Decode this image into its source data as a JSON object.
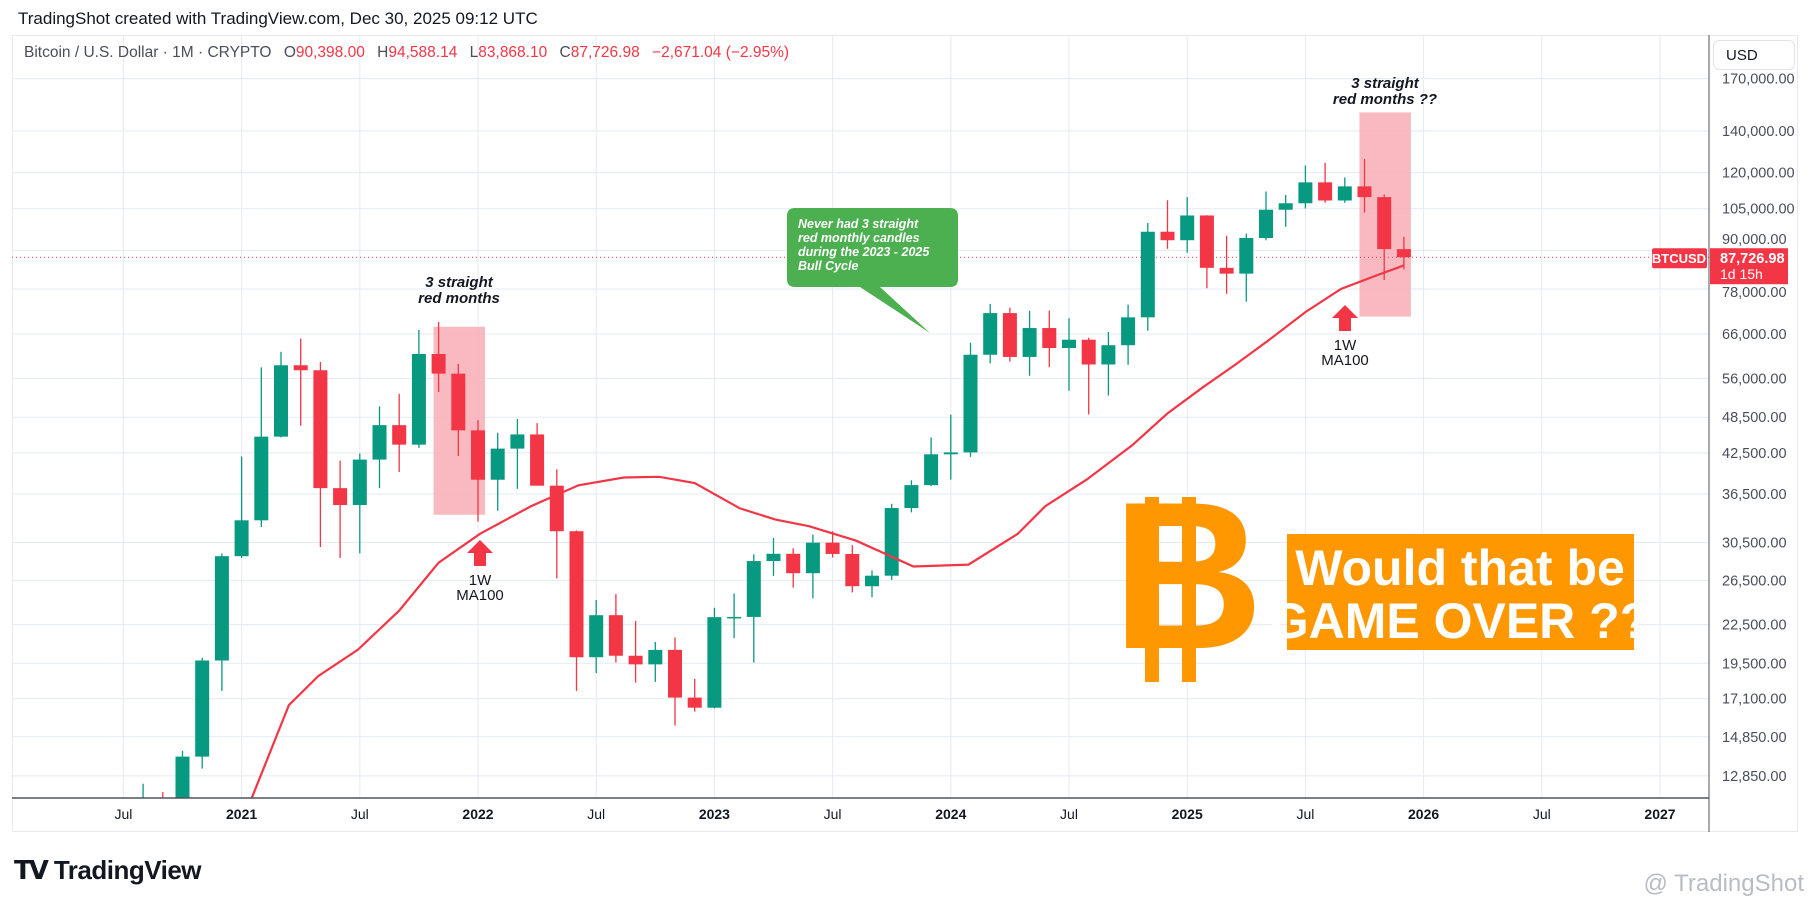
{
  "header": {
    "title": "TradingShot created with TradingView.com, Dec 30, 2025 09:12 UTC"
  },
  "legend": {
    "symbol": "Bitcoin / U.S. Dollar · 1M · CRYPTO",
    "o_label": "O",
    "o": "90,398.00",
    "h_label": "H",
    "h": "94,588.14",
    "l_label": "L",
    "l": "83,868.10",
    "c_label": "C",
    "c": "87,726.98",
    "change": "−2,671.04 (−2.95%)"
  },
  "currency_button": "USD",
  "price_tag": {
    "symbol": "BTCUSD",
    "price": "87,726.98",
    "countdown": "1d 15h",
    "value": 87726.98
  },
  "colors": {
    "up": "#089981",
    "down": "#f23645",
    "ma": "#f23645",
    "accent": "#ff9800",
    "bubble": "#4caf50",
    "highlight": "#f7b2b9"
  },
  "annotations": {
    "box1_line1": "3 straight",
    "box1_line2": "red months",
    "box2_line1": "3 straight",
    "box2_line2": "red months ??",
    "arrow1_line1": "1W",
    "arrow1_line2": "MA100",
    "arrow2_line1": "1W",
    "arrow2_line2": "MA100",
    "bubble_lines": [
      "Never had 3 straight",
      "red monthly candles",
      "during the 2023 - 2025",
      "Bull Cycle"
    ],
    "banner_line1": "Would that be",
    "banner_line2": "GAME OVER ??",
    "logo_letter": "B"
  },
  "footer": {
    "brand": "TradingView",
    "watermark": "@ TradingShot"
  },
  "chart_data": {
    "type": "candlestick",
    "title": "Bitcoin / U.S. Dollar · 1M · CRYPTO",
    "yscale": "log",
    "ylim": [
      11500,
      185000
    ],
    "first_month": "2020-07",
    "yticks": [
      170000,
      140000,
      120000,
      105000,
      90000,
      78000,
      66000,
      56000,
      48500,
      42500,
      36500,
      30500,
      26500,
      22500,
      19500,
      17100,
      14850,
      12850
    ],
    "ytick_labels": [
      "170,000.00",
      "140,000.00",
      "120,000.00",
      "105,000.00",
      "90,000.00",
      "78,000.00",
      "66,000.00",
      "56,000.00",
      "48,500.00",
      "42,500.00",
      "36,500.00",
      "30,500.00",
      "26,500.00",
      "22,500.00",
      "19,500.00",
      "17,100.00",
      "14,850.00",
      "12,850.00"
    ],
    "xticks": [
      {
        "label": "Jul",
        "month": -6,
        "major": false
      },
      {
        "label": "2021",
        "month": 0,
        "major": true
      },
      {
        "label": "Jul",
        "month": 6,
        "major": false
      },
      {
        "label": "2022",
        "month": 12,
        "major": true
      },
      {
        "label": "Jul",
        "month": 18,
        "major": false
      },
      {
        "label": "2023",
        "month": 24,
        "major": true
      },
      {
        "label": "Jul",
        "month": 30,
        "major": false
      },
      {
        "label": "2024",
        "month": 36,
        "major": true
      },
      {
        "label": "Jul",
        "month": 42,
        "major": false
      },
      {
        "label": "2025",
        "month": 48,
        "major": true
      },
      {
        "label": "Jul",
        "month": 54,
        "major": false
      },
      {
        "label": "2026",
        "month": 60,
        "major": true
      },
      {
        "label": "Jul",
        "month": 66,
        "major": false
      },
      {
        "label": "2027",
        "month": 72,
        "major": true
      }
    ],
    "ohlc": [
      [
        9140,
        11450,
        8990,
        11350
      ],
      [
        11350,
        12480,
        11100,
        11650
      ],
      [
        11650,
        12100,
        9900,
        10780
      ],
      [
        10780,
        14100,
        10550,
        13800
      ],
      [
        13800,
        19900,
        13200,
        19700
      ],
      [
        19700,
        29300,
        17600,
        28990
      ],
      [
        28990,
        41950,
        28800,
        33110
      ],
      [
        33110,
        58350,
        32300,
        45140
      ],
      [
        45140,
        61800,
        45000,
        58800
      ],
      [
        58800,
        64900,
        47000,
        57720
      ],
      [
        57720,
        59500,
        30000,
        37300
      ],
      [
        37300,
        41300,
        28800,
        35040
      ],
      [
        35040,
        42400,
        29300,
        41460
      ],
      [
        41460,
        50500,
        37300,
        47100
      ],
      [
        47100,
        52900,
        39600,
        43820
      ],
      [
        43820,
        67000,
        43300,
        61300
      ],
      [
        61300,
        69000,
        53250,
        57000
      ],
      [
        57000,
        59100,
        42000,
        46200
      ],
      [
        46200,
        47990,
        32950,
        38480
      ],
      [
        38480,
        45800,
        34300,
        43180
      ],
      [
        43180,
        48200,
        37200,
        45510
      ],
      [
        45510,
        47450,
        37700,
        37640
      ],
      [
        37640,
        40000,
        26700,
        31800
      ],
      [
        31800,
        31900,
        17600,
        19940
      ],
      [
        19940,
        24650,
        18800,
        23300
      ],
      [
        23300,
        25200,
        19550,
        20050
      ],
      [
        20050,
        22800,
        18150,
        19420
      ],
      [
        19420,
        21100,
        18200,
        20490
      ],
      [
        20490,
        21450,
        15480,
        17170
      ],
      [
        17170,
        18400,
        16300,
        16540
      ],
      [
        16540,
        23950,
        16500,
        23130
      ],
      [
        23130,
        25250,
        21400,
        23150
      ],
      [
        23150,
        29200,
        19550,
        28470
      ],
      [
        28470,
        31000,
        26950,
        29250
      ],
      [
        29250,
        29850,
        25800,
        27220
      ],
      [
        27220,
        31400,
        24800,
        30480
      ],
      [
        30480,
        31800,
        28850,
        29230
      ],
      [
        29230,
        30200,
        25350,
        25940
      ],
      [
        25940,
        27500,
        24900,
        26970
      ],
      [
        26970,
        35200,
        26550,
        34650
      ],
      [
        34650,
        38400,
        34100,
        37720
      ],
      [
        37720,
        45000,
        37600,
        42280
      ],
      [
        42280,
        48970,
        38500,
        42580
      ],
      [
        42580,
        63900,
        41880,
        61130
      ],
      [
        61130,
        73800,
        59200,
        71330
      ],
      [
        71330,
        72800,
        59600,
        60640
      ],
      [
        60640,
        71950,
        56550,
        67490
      ],
      [
        67490,
        72000,
        58400,
        62680
      ],
      [
        62680,
        70000,
        53500,
        64630
      ],
      [
        64630,
        65100,
        49000,
        58970
      ],
      [
        58970,
        66500,
        52550,
        63330
      ],
      [
        63330,
        73600,
        58900,
        70220
      ],
      [
        70220,
        99600,
        66800,
        96410
      ],
      [
        96410,
        108350,
        90500,
        93430
      ],
      [
        93430,
        109600,
        89200,
        102400
      ],
      [
        102400,
        102500,
        78200,
        84350
      ],
      [
        84350,
        95000,
        76600,
        82550
      ],
      [
        82550,
        95750,
        74400,
        94200
      ],
      [
        94200,
        111900,
        93400,
        104600
      ],
      [
        104600,
        110500,
        98200,
        107130
      ],
      [
        107130,
        123200,
        105100,
        115760
      ],
      [
        115760,
        124450,
        107300,
        108240
      ],
      [
        108240,
        117900,
        107300,
        114050
      ],
      [
        114050,
        126200,
        103500,
        109600
      ],
      [
        109600,
        110700,
        80600,
        90398
      ],
      [
        90398,
        94588.14,
        83868.1,
        87726.98
      ]
    ],
    "ma100_weekly": [
      [
        0.5,
        11800
      ],
      [
        2.4,
        16700
      ],
      [
        3.9,
        18600
      ],
      [
        5.9,
        20500
      ],
      [
        8.0,
        23700
      ],
      [
        10.0,
        28300
      ],
      [
        12.1,
        31500
      ],
      [
        14.7,
        34900
      ],
      [
        17.1,
        37700
      ],
      [
        19.4,
        38800
      ],
      [
        21.2,
        38900
      ],
      [
        23.0,
        38000
      ],
      [
        25.3,
        34600
      ],
      [
        27.1,
        33200
      ],
      [
        28.8,
        32400
      ],
      [
        31.2,
        30700
      ],
      [
        34.1,
        27900
      ],
      [
        36.9,
        28100
      ],
      [
        39.4,
        31500
      ],
      [
        40.8,
        34900
      ],
      [
        42.9,
        38500
      ],
      [
        45.2,
        43700
      ],
      [
        47.0,
        49200
      ],
      [
        48.8,
        54200
      ],
      [
        50.5,
        59100
      ],
      [
        52.3,
        65100
      ],
      [
        54.0,
        71600
      ],
      [
        55.8,
        78000
      ],
      [
        57.6,
        82000
      ],
      [
        59.0,
        85100
      ]
    ],
    "highlight_ranges": [
      {
        "from_month": 10.1,
        "to_month": 12.0,
        "low": 33800,
        "high": 67800
      },
      {
        "from_month": 57.1,
        "to_month": 59.0,
        "low": 70400,
        "high": 150000
      }
    ]
  }
}
